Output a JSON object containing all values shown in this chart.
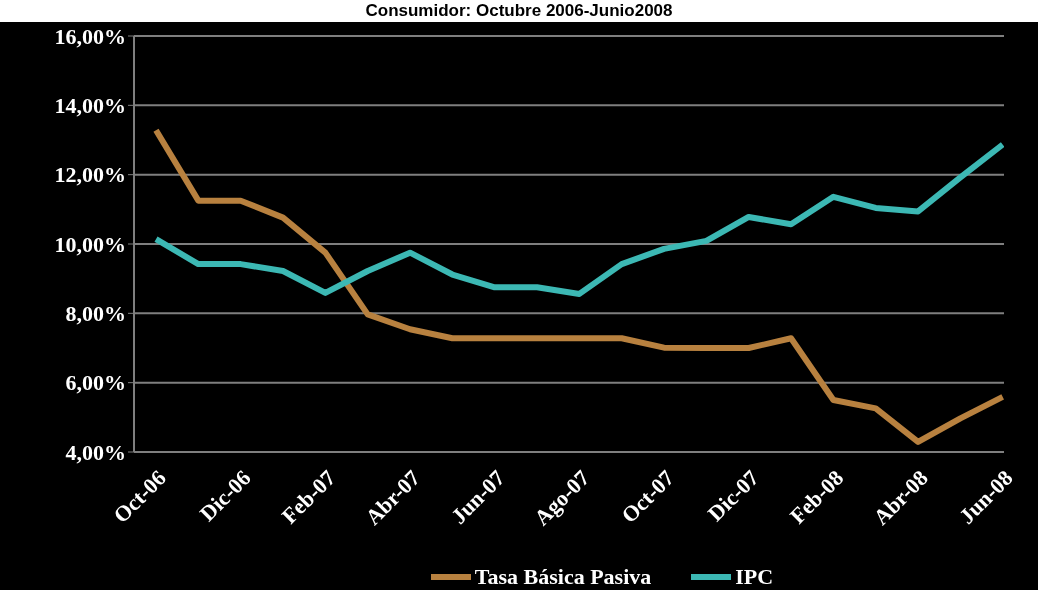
{
  "chart_data": {
    "type": "line",
    "title": "Consumidor: Octubre 2006-Junio2008",
    "categories": [
      "Oct-06",
      null,
      "Dic-06",
      null,
      "Feb-07",
      null,
      "Abr-07",
      null,
      "Jun-07",
      null,
      "Ago-07",
      null,
      "Oct-07",
      null,
      "Dic-07",
      null,
      "Feb-08",
      null,
      "Abr-08",
      null,
      "Jun-08"
    ],
    "series": [
      {
        "name": "Tasa Básica Pasiva",
        "color": "#b8813f",
        "values": [
          13.28,
          11.25,
          11.25,
          10.76,
          9.75,
          7.97,
          7.54,
          7.28,
          7.28,
          7.28,
          7.28,
          7.28,
          7.01,
          7.0,
          7.0,
          7.28,
          5.5,
          5.26,
          4.29,
          4.97,
          5.59
        ]
      },
      {
        "name": "IPC",
        "color": "#3cb8b4",
        "values": [
          10.14,
          9.42,
          9.42,
          9.22,
          8.59,
          9.22,
          9.75,
          9.12,
          8.75,
          8.75,
          8.56,
          9.42,
          9.86,
          10.09,
          10.78,
          10.57,
          11.36,
          11.04,
          10.94,
          11.92,
          12.87
        ]
      }
    ],
    "ylim": [
      4,
      16
    ],
    "yticks": [
      {
        "value": 4,
        "label": "4,00%"
      },
      {
        "value": 6,
        "label": "6,00%"
      },
      {
        "value": 8,
        "label": "8,00%"
      },
      {
        "value": 10,
        "label": "10,00%"
      },
      {
        "value": 12,
        "label": "12,00%"
      },
      {
        "value": 14,
        "label": "14,00%"
      },
      {
        "value": 16,
        "label": "16,00%"
      }
    ],
    "grid": "y",
    "legend": "bottom",
    "marker": "none",
    "line_style": "solid"
  }
}
